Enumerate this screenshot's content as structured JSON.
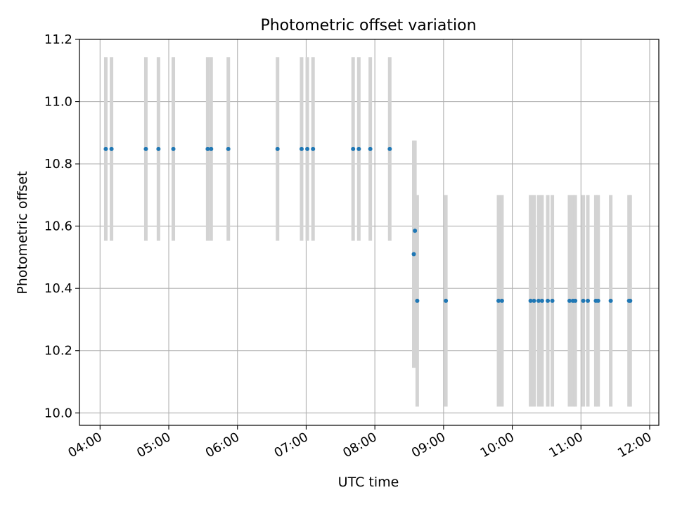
{
  "chart_data": {
    "type": "scatter",
    "title": "Photometric offset variation",
    "xlabel": "UTC time",
    "ylabel": "Photometric offset",
    "xlim": [
      "03:42",
      "12:08"
    ],
    "ylim": [
      9.96,
      11.2
    ],
    "grid": true,
    "x_tick_labels": [
      "04:00",
      "05:00",
      "06:00",
      "07:00",
      "08:00",
      "09:00",
      "10:00",
      "11:00",
      "12:00"
    ],
    "y_tick_labels": [
      "10.0",
      "10.2",
      "10.4",
      "10.6",
      "10.8",
      "11.0",
      "11.2"
    ],
    "series": [
      {
        "marker_color": "#1f77b4",
        "errorbar_color": "#d3d3d3",
        "points": [
          {
            "x": "04:05",
            "y": 10.848,
            "err": 0.295
          },
          {
            "x": "04:10",
            "y": 10.848,
            "err": 0.295
          },
          {
            "x": "04:40",
            "y": 10.848,
            "err": 0.295
          },
          {
            "x": "04:51",
            "y": 10.848,
            "err": 0.295
          },
          {
            "x": "05:04",
            "y": 10.848,
            "err": 0.295
          },
          {
            "x": "05:34",
            "y": 10.848,
            "err": 0.295
          },
          {
            "x": "05:37",
            "y": 10.848,
            "err": 0.295
          },
          {
            "x": "05:52",
            "y": 10.848,
            "err": 0.295
          },
          {
            "x": "06:35",
            "y": 10.848,
            "err": 0.295
          },
          {
            "x": "06:56",
            "y": 10.848,
            "err": 0.295
          },
          {
            "x": "07:01",
            "y": 10.848,
            "err": 0.295
          },
          {
            "x": "07:06",
            "y": 10.848,
            "err": 0.295
          },
          {
            "x": "07:41",
            "y": 10.848,
            "err": 0.295
          },
          {
            "x": "07:46",
            "y": 10.848,
            "err": 0.295
          },
          {
            "x": "07:56",
            "y": 10.848,
            "err": 0.295
          },
          {
            "x": "08:13",
            "y": 10.848,
            "err": 0.295
          },
          {
            "x": "08:34",
            "y": 10.51,
            "err": 0.365
          },
          {
            "x": "08:35",
            "y": 10.585,
            "err": 0.29
          },
          {
            "x": "08:37",
            "y": 10.36,
            "err": 0.34
          },
          {
            "x": "09:02",
            "y": 10.36,
            "err": 0.34
          },
          {
            "x": "09:48",
            "y": 10.36,
            "err": 0.34
          },
          {
            "x": "09:51",
            "y": 10.36,
            "err": 0.34
          },
          {
            "x": "10:16",
            "y": 10.36,
            "err": 0.34
          },
          {
            "x": "10:19",
            "y": 10.36,
            "err": 0.34
          },
          {
            "x": "10:23",
            "y": 10.36,
            "err": 0.34
          },
          {
            "x": "10:26",
            "y": 10.36,
            "err": 0.34
          },
          {
            "x": "10:31",
            "y": 10.36,
            "err": 0.34
          },
          {
            "x": "10:35",
            "y": 10.36,
            "err": 0.34
          },
          {
            "x": "10:50",
            "y": 10.36,
            "err": 0.34
          },
          {
            "x": "10:53",
            "y": 10.36,
            "err": 0.34
          },
          {
            "x": "10:55",
            "y": 10.36,
            "err": 0.34
          },
          {
            "x": "11:02",
            "y": 10.36,
            "err": 0.34
          },
          {
            "x": "11:06",
            "y": 10.36,
            "err": 0.34
          },
          {
            "x": "11:13",
            "y": 10.36,
            "err": 0.34
          },
          {
            "x": "11:15",
            "y": 10.36,
            "err": 0.34
          },
          {
            "x": "11:26",
            "y": 10.36,
            "err": 0.34
          },
          {
            "x": "11:42",
            "y": 10.36,
            "err": 0.34
          },
          {
            "x": "11:43",
            "y": 10.36,
            "err": 0.34
          }
        ]
      }
    ]
  }
}
